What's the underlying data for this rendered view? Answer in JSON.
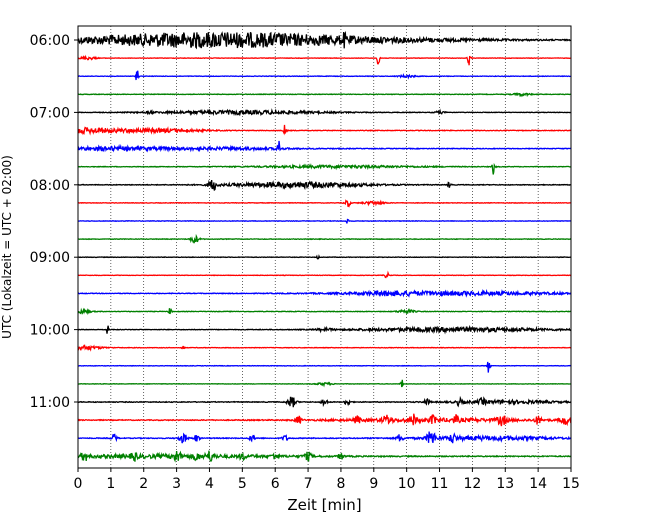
{
  "chart_data": {
    "type": "line",
    "title": "",
    "xlabel": "Zeit  [min]",
    "ylabel": "UTC (Lokalzeit = UTC + 02:00)",
    "xlim": [
      0,
      15
    ],
    "x_ticks": [
      0,
      1,
      2,
      3,
      4,
      5,
      6,
      7,
      8,
      9,
      10,
      11,
      12,
      13,
      14,
      15
    ],
    "x_tick_labels": [
      "0",
      "1",
      "2",
      "3",
      "4",
      "5",
      "6",
      "7",
      "8",
      "9",
      "10",
      "11",
      "12",
      "13",
      "14",
      "15"
    ],
    "y_tick_labels": [
      "06:00",
      "07:00",
      "08:00",
      "09:00",
      "10:00",
      "11:00"
    ],
    "y_tick_rows": [
      0,
      4,
      8,
      12,
      16,
      20
    ],
    "row_interval_min": 15,
    "grid": {
      "x_minor_dotted": true
    },
    "colors": [
      "#000000",
      "#ff0000",
      "#0000ff",
      "#008000"
    ],
    "traces": [
      {
        "start": "06:00",
        "color": "#000000",
        "noise": 0.1,
        "events": [
          [
            3.8,
            4.4,
            1.3
          ],
          [
            6.3,
            6.5,
            1.1
          ],
          [
            2.0,
            5.5,
            0.35
          ],
          [
            8.1,
            0.05,
            1.5
          ]
        ]
      },
      {
        "start": "06:15",
        "color": "#ff0000",
        "noise": 0.07,
        "events": [
          [
            9.15,
            0.05,
            3.3
          ],
          [
            11.9,
            0.05,
            2.4
          ],
          [
            0.3,
            0.3,
            0.5
          ]
        ]
      },
      {
        "start": "06:30",
        "color": "#0000ff",
        "noise": 0.08,
        "events": [
          [
            1.8,
            0.04,
            3.3
          ],
          [
            10.0,
            0.3,
            0.4
          ]
        ]
      },
      {
        "start": "06:45",
        "color": "#008000",
        "noise": 0.09,
        "events": [
          [
            13.5,
            0.3,
            0.4
          ]
        ]
      },
      {
        "start": "07:00",
        "color": "#000000",
        "noise": 0.08,
        "events": [
          [
            5.0,
            3.0,
            0.6
          ],
          [
            2.2,
            0.1,
            0.4
          ],
          [
            11.0,
            0.2,
            0.4
          ]
        ]
      },
      {
        "start": "07:15",
        "color": "#ff0000",
        "noise": 0.1,
        "events": [
          [
            0.0,
            1.5,
            0.9
          ],
          [
            2.5,
            1.5,
            0.6
          ],
          [
            6.3,
            0.05,
            2.0
          ]
        ]
      },
      {
        "start": "07:30",
        "color": "#0000ff",
        "noise": 0.11,
        "events": [
          [
            1.0,
            2.0,
            0.6
          ],
          [
            6.1,
            0.05,
            2.8
          ],
          [
            4.5,
            2.5,
            0.4
          ]
        ]
      },
      {
        "start": "07:45",
        "color": "#008000",
        "noise": 0.09,
        "events": [
          [
            12.65,
            0.05,
            2.8
          ],
          [
            8.0,
            3.0,
            0.4
          ]
        ]
      },
      {
        "start": "08:00",
        "color": "#000000",
        "noise": 0.1,
        "events": [
          [
            4.1,
            0.15,
            1.8
          ],
          [
            6.7,
            2.5,
            0.9
          ],
          [
            11.3,
            0.05,
            1.5
          ]
        ]
      },
      {
        "start": "08:15",
        "color": "#ff0000",
        "noise": 0.08,
        "events": [
          [
            8.2,
            0.1,
            1.2
          ],
          [
            9.0,
            0.4,
            0.5
          ]
        ]
      },
      {
        "start": "08:30",
        "color": "#0000ff",
        "noise": 0.08,
        "events": [
          [
            8.2,
            0.05,
            1.0
          ]
        ]
      },
      {
        "start": "08:45",
        "color": "#008000",
        "noise": 0.09,
        "events": [
          [
            3.55,
            0.15,
            1.3
          ]
        ]
      },
      {
        "start": "09:00",
        "color": "#000000",
        "noise": 0.08,
        "events": [
          [
            7.3,
            0.04,
            0.8
          ]
        ]
      },
      {
        "start": "09:15",
        "color": "#ff0000",
        "noise": 0.07,
        "events": [
          [
            9.4,
            0.1,
            0.8
          ]
        ]
      },
      {
        "start": "09:30",
        "color": "#0000ff",
        "noise": 0.1,
        "events": [
          [
            11.5,
            4.0,
            0.6
          ],
          [
            9.5,
            1.0,
            0.4
          ]
        ]
      },
      {
        "start": "09:45",
        "color": "#008000",
        "noise": 0.09,
        "events": [
          [
            0.0,
            0.4,
            0.7
          ],
          [
            2.8,
            0.05,
            1.2
          ],
          [
            10.0,
            0.3,
            0.6
          ]
        ]
      },
      {
        "start": "10:00",
        "color": "#000000",
        "noise": 0.09,
        "events": [
          [
            0.9,
            0.05,
            1.6
          ],
          [
            11.5,
            3.5,
            0.7
          ],
          [
            7.5,
            0.3,
            0.4
          ]
        ]
      },
      {
        "start": "10:15",
        "color": "#ff0000",
        "noise": 0.08,
        "events": [
          [
            0.0,
            0.8,
            0.8
          ],
          [
            3.2,
            0.04,
            1.2
          ]
        ]
      },
      {
        "start": "10:30",
        "color": "#0000ff",
        "noise": 0.07,
        "events": [
          [
            12.5,
            0.05,
            2.6
          ]
        ]
      },
      {
        "start": "10:45",
        "color": "#008000",
        "noise": 0.07,
        "events": [
          [
            9.85,
            0.04,
            1.8
          ],
          [
            7.5,
            0.3,
            0.4
          ]
        ]
      },
      {
        "start": "11:00",
        "color": "#000000",
        "noise": 0.12,
        "events": [
          [
            6.5,
            0.15,
            1.8
          ],
          [
            7.5,
            0.1,
            1.3
          ],
          [
            8.2,
            0.1,
            1.2
          ],
          [
            10.6,
            0.1,
            1.0
          ],
          [
            11.6,
            0.1,
            1.0
          ],
          [
            12.3,
            0.1,
            0.9
          ],
          [
            13.0,
            2.0,
            0.5
          ]
        ]
      },
      {
        "start": "11:15",
        "color": "#ff0000",
        "noise": 0.13,
        "events": [
          [
            6.7,
            0.1,
            1.4
          ],
          [
            8.5,
            0.1,
            1.3
          ],
          [
            9.4,
            0.15,
            1.3
          ],
          [
            10.2,
            0.1,
            1.6
          ],
          [
            10.8,
            0.1,
            1.2
          ],
          [
            11.5,
            0.1,
            1.2
          ],
          [
            12.9,
            0.15,
            1.5
          ],
          [
            14.0,
            0.1,
            1.3
          ],
          [
            14.8,
            0.15,
            1.6
          ],
          [
            11.0,
            4.0,
            0.5
          ]
        ]
      },
      {
        "start": "11:30",
        "color": "#0000ff",
        "noise": 0.13,
        "events": [
          [
            1.1,
            0.1,
            1.3
          ],
          [
            3.2,
            0.15,
            1.5
          ],
          [
            3.6,
            0.1,
            1.2
          ],
          [
            5.3,
            0.1,
            1.0
          ],
          [
            6.3,
            0.1,
            1.0
          ],
          [
            9.8,
            0.1,
            1.3
          ],
          [
            10.75,
            0.15,
            2.3
          ],
          [
            11.4,
            0.1,
            1.4
          ],
          [
            12.5,
            2.5,
            0.6
          ]
        ]
      },
      {
        "start": "11:45",
        "color": "#008000",
        "noise": 0.15,
        "events": [
          [
            0.2,
            0.1,
            1.5
          ],
          [
            1.7,
            0.1,
            1.3
          ],
          [
            3.0,
            0.15,
            1.5
          ],
          [
            3.6,
            0.1,
            1.2
          ],
          [
            4.0,
            0.15,
            1.4
          ],
          [
            5.0,
            0.1,
            1.0
          ],
          [
            6.0,
            0.1,
            1.0
          ],
          [
            7.0,
            0.15,
            1.2
          ],
          [
            8.0,
            0.1,
            1.0
          ],
          [
            2.5,
            5.0,
            0.5
          ]
        ]
      }
    ]
  }
}
